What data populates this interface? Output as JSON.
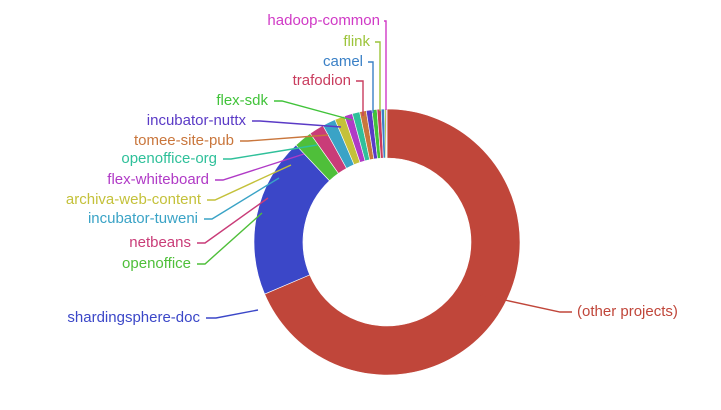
{
  "chart_data": {
    "type": "pie",
    "donut": true,
    "slices": [
      {
        "label": "(other projects)",
        "value": 68.6,
        "color": "#c0463a"
      },
      {
        "label": "shardingsphere-doc",
        "value": 19.4,
        "color": "#3b47c8"
      },
      {
        "label": "openoffice",
        "value": 2.2,
        "color": "#4fbf3a"
      },
      {
        "label": "netbeans",
        "value": 1.8,
        "color": "#c93c78"
      },
      {
        "label": "incubator-tuweni",
        "value": 1.6,
        "color": "#3aa3c6"
      },
      {
        "label": "archiva-web-content",
        "value": 1.2,
        "color": "#c4c13a"
      },
      {
        "label": "flex-whiteboard",
        "value": 1.0,
        "color": "#b03ac6"
      },
      {
        "label": "openoffice-org",
        "value": 0.9,
        "color": "#2fc09a"
      },
      {
        "label": "tomee-site-pub",
        "value": 0.8,
        "color": "#c9763c"
      },
      {
        "label": "incubator-nuttx",
        "value": 0.7,
        "color": "#5a3ac6"
      },
      {
        "label": "flex-sdk",
        "value": 0.6,
        "color": "#41c33a"
      },
      {
        "label": "trafodion",
        "value": 0.5,
        "color": "#c93c5e"
      },
      {
        "label": "camel",
        "value": 0.4,
        "color": "#3a80c6"
      },
      {
        "label": "flink",
        "value": 0.2,
        "color": "#9cc43a"
      },
      {
        "label": "hadoop-common",
        "value": 0.1,
        "color": "#d03ac6"
      }
    ]
  }
}
